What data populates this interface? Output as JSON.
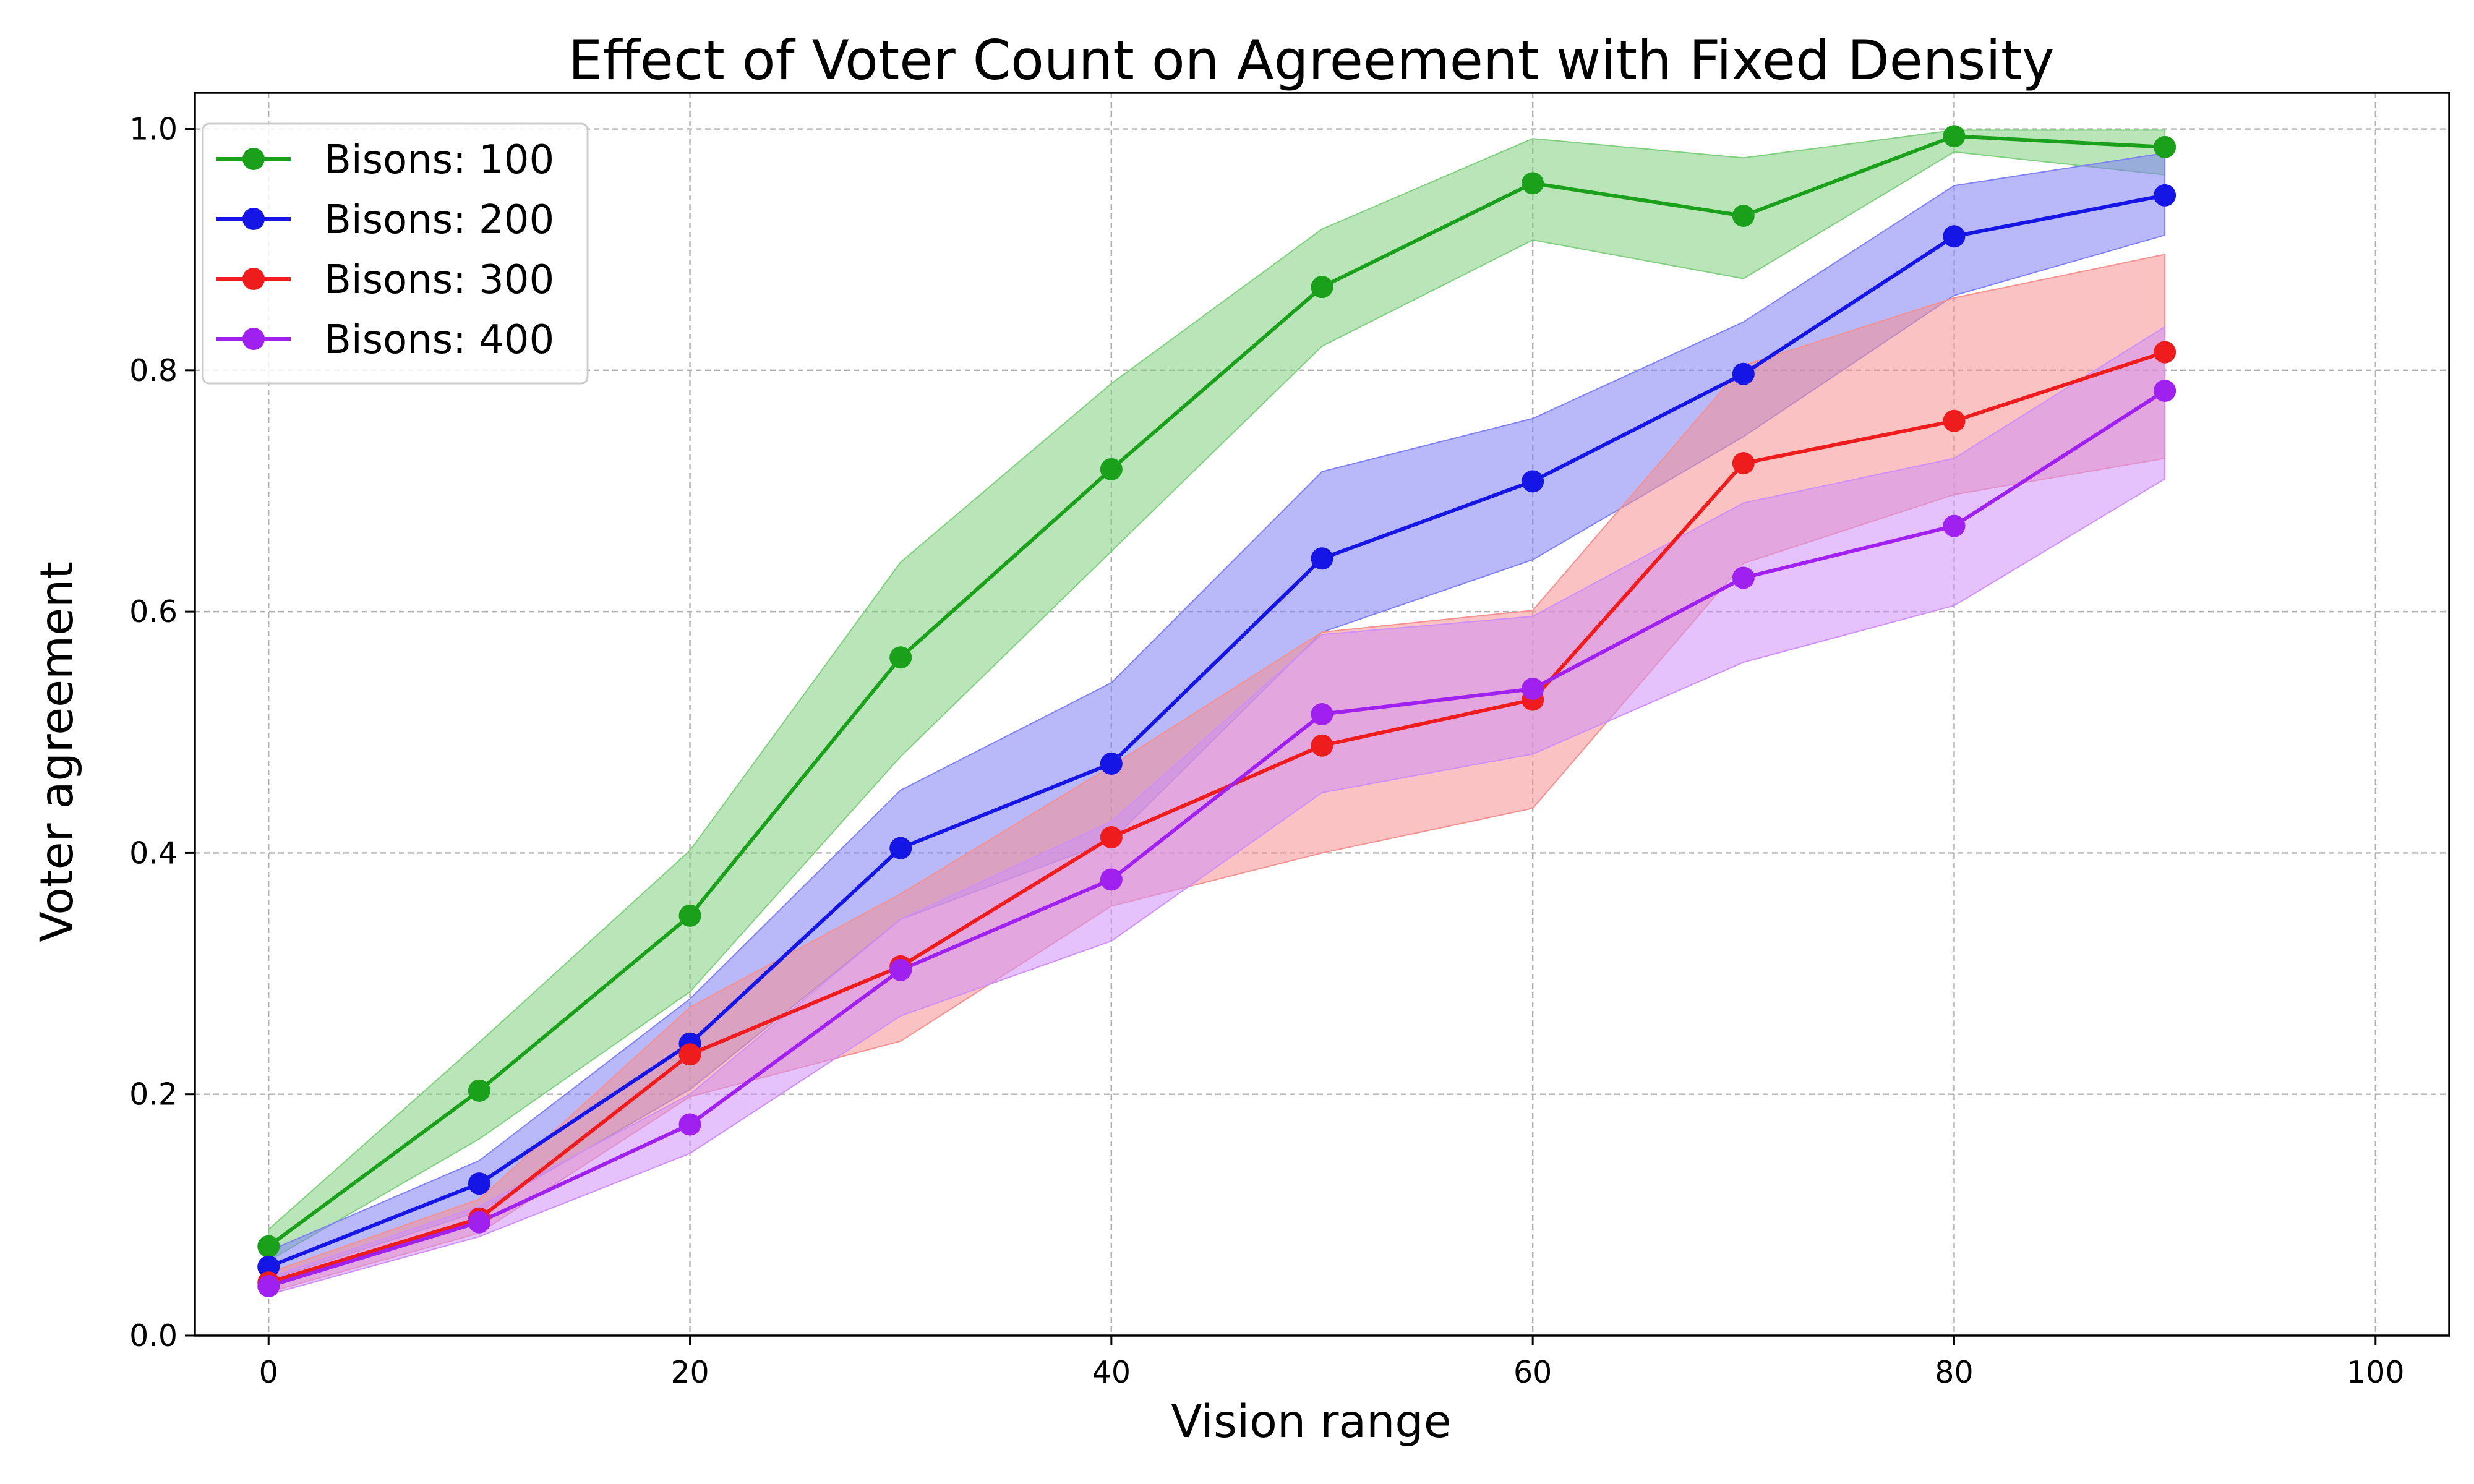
{
  "chart_data": {
    "type": "line",
    "title": "Effect of Voter Count on Agreement with Fixed Density",
    "xlabel": "Vision range",
    "ylabel": "Voter agreement",
    "xlim": [
      -3.5,
      103.5
    ],
    "ylim": [
      0.0,
      1.03
    ],
    "xticks": [
      0,
      20,
      40,
      60,
      80,
      100
    ],
    "yticks": [
      0.0,
      0.2,
      0.4,
      0.6,
      0.8,
      1.0
    ],
    "xtick_labels": [
      "0",
      "20",
      "40",
      "60",
      "80",
      "100"
    ],
    "ytick_labels": [
      "0.0",
      "0.2",
      "0.4",
      "0.6",
      "0.8",
      "1.0"
    ],
    "grid": true,
    "legend_position": "top-left",
    "x": [
      0,
      10,
      20,
      30,
      40,
      50,
      60,
      70,
      80,
      90
    ],
    "series": [
      {
        "name": "Bisons: 100",
        "color": "#1aa01a",
        "fill_color": "#7fcf7f",
        "values": [
          0.074,
          0.203,
          0.348,
          0.562,
          0.718,
          0.869,
          0.955,
          0.928,
          0.994,
          0.985
        ],
        "lower": [
          0.062,
          0.163,
          0.285,
          0.48,
          0.65,
          0.82,
          0.908,
          0.876,
          0.981,
          0.962
        ],
        "upper": [
          0.088,
          0.243,
          0.402,
          0.641,
          0.789,
          0.917,
          0.992,
          0.976,
          0.999,
          0.999
        ]
      },
      {
        "name": "Bisons: 200",
        "color": "#1515e6",
        "fill_color": "#8080f5",
        "values": [
          0.057,
          0.126,
          0.242,
          0.404,
          0.474,
          0.644,
          0.708,
          0.797,
          0.911,
          0.945
        ],
        "lower": [
          0.046,
          0.103,
          0.204,
          0.345,
          0.41,
          0.583,
          0.643,
          0.745,
          0.862,
          0.912
        ],
        "upper": [
          0.07,
          0.145,
          0.279,
          0.452,
          0.541,
          0.716,
          0.76,
          0.84,
          0.953,
          0.98
        ]
      },
      {
        "name": "Bisons: 300",
        "color": "#ee1c1c",
        "fill_color": "#f59090",
        "values": [
          0.044,
          0.097,
          0.233,
          0.306,
          0.413,
          0.489,
          0.527,
          0.723,
          0.758,
          0.815
        ],
        "lower": [
          0.036,
          0.085,
          0.198,
          0.244,
          0.356,
          0.4,
          0.437,
          0.64,
          0.697,
          0.727
        ],
        "upper": [
          0.052,
          0.113,
          0.272,
          0.366,
          0.472,
          0.583,
          0.601,
          0.804,
          0.86,
          0.896
        ]
      },
      {
        "name": "Bisons: 400",
        "color": "#a020f0",
        "fill_color": "#cf8ff7",
        "values": [
          0.041,
          0.094,
          0.175,
          0.303,
          0.378,
          0.515,
          0.536,
          0.628,
          0.671,
          0.783
        ],
        "lower": [
          0.034,
          0.082,
          0.151,
          0.265,
          0.327,
          0.45,
          0.482,
          0.558,
          0.605,
          0.71
        ],
        "upper": [
          0.048,
          0.107,
          0.2,
          0.345,
          0.426,
          0.581,
          0.596,
          0.69,
          0.727,
          0.836
        ]
      }
    ]
  }
}
